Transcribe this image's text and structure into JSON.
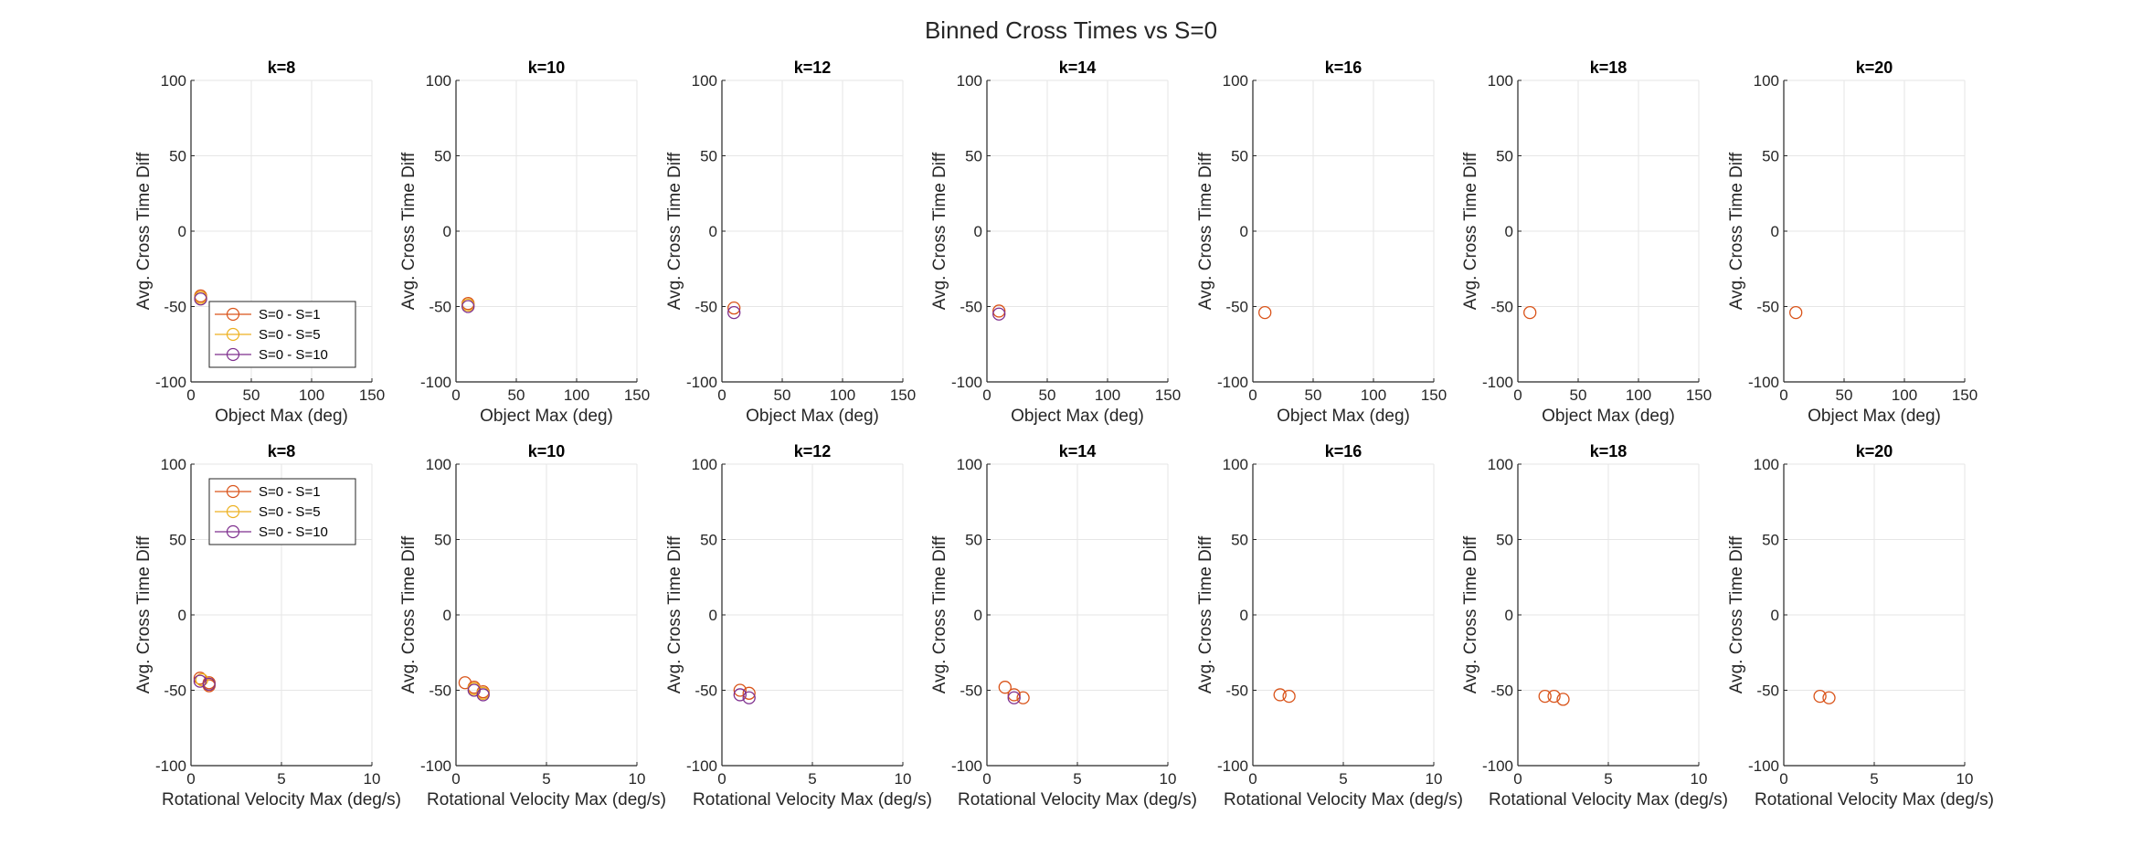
{
  "figure": {
    "title": "Binned Cross Times vs S=0"
  },
  "legend_entries": [
    "S=0 - S=1",
    "S=0 - S=5",
    "S=0 - S=10"
  ],
  "colors": {
    "S1": "#D95319",
    "S5": "#EDB120",
    "S10": "#7E2F8E",
    "grid": "#e6e6e6",
    "axis": "#262626"
  },
  "chart_data": [
    {
      "type": "scatter",
      "title": "k=8",
      "xlabel": "Object Max (deg)",
      "ylabel": "Avg. Cross Time Diff",
      "xlim": [
        0,
        150
      ],
      "ylim": [
        -100,
        100
      ],
      "xticks": [
        0,
        50,
        100,
        150
      ],
      "yticks": [
        -100,
        -50,
        0,
        50,
        100
      ],
      "grid": true,
      "legend": "bottom-left",
      "series": [
        {
          "name": "S=0 - S=1",
          "points": [
            [
              8,
              -43
            ]
          ]
        },
        {
          "name": "S=0 - S=5",
          "points": [
            [
              8,
              -44
            ]
          ]
        },
        {
          "name": "S=0 - S=10",
          "points": [
            [
              8,
              -45
            ]
          ]
        }
      ]
    },
    {
      "type": "scatter",
      "title": "k=10",
      "xlabel": "Object Max (deg)",
      "ylabel": "Avg. Cross Time Diff",
      "xlim": [
        0,
        150
      ],
      "ylim": [
        -100,
        100
      ],
      "xticks": [
        0,
        50,
        100,
        150
      ],
      "yticks": [
        -100,
        -50,
        0,
        50,
        100
      ],
      "grid": true,
      "legend": null,
      "series": [
        {
          "name": "S=0 - S=1",
          "points": [
            [
              10,
              -48
            ]
          ]
        },
        {
          "name": "S=0 - S=5",
          "points": [
            [
              10,
              -49
            ]
          ]
        },
        {
          "name": "S=0 - S=10",
          "points": [
            [
              10,
              -50
            ]
          ]
        }
      ]
    },
    {
      "type": "scatter",
      "title": "k=12",
      "xlabel": "Object Max (deg)",
      "ylabel": "Avg. Cross Time Diff",
      "xlim": [
        0,
        150
      ],
      "ylim": [
        -100,
        100
      ],
      "xticks": [
        0,
        50,
        100,
        150
      ],
      "yticks": [
        -100,
        -50,
        0,
        50,
        100
      ],
      "grid": true,
      "legend": null,
      "series": [
        {
          "name": "S=0 - S=1",
          "points": [
            [
              10,
              -51
            ]
          ]
        },
        {
          "name": "S=0 - S=10",
          "points": [
            [
              10,
              -54
            ]
          ]
        }
      ]
    },
    {
      "type": "scatter",
      "title": "k=14",
      "xlabel": "Object Max (deg)",
      "ylabel": "Avg. Cross Time Diff",
      "xlim": [
        0,
        150
      ],
      "ylim": [
        -100,
        100
      ],
      "xticks": [
        0,
        50,
        100,
        150
      ],
      "yticks": [
        -100,
        -50,
        0,
        50,
        100
      ],
      "grid": true,
      "legend": null,
      "series": [
        {
          "name": "S=0 - S=1",
          "points": [
            [
              10,
              -53
            ]
          ]
        },
        {
          "name": "S=0 - S=10",
          "points": [
            [
              10,
              -55
            ]
          ]
        }
      ]
    },
    {
      "type": "scatter",
      "title": "k=16",
      "xlabel": "Object Max (deg)",
      "ylabel": "Avg. Cross Time Diff",
      "xlim": [
        0,
        150
      ],
      "ylim": [
        -100,
        100
      ],
      "xticks": [
        0,
        50,
        100,
        150
      ],
      "yticks": [
        -100,
        -50,
        0,
        50,
        100
      ],
      "grid": true,
      "legend": null,
      "series": [
        {
          "name": "S=0 - S=1",
          "points": [
            [
              10,
              -54
            ]
          ]
        }
      ]
    },
    {
      "type": "scatter",
      "title": "k=18",
      "xlabel": "Object Max (deg)",
      "ylabel": "Avg. Cross Time Diff",
      "xlim": [
        0,
        150
      ],
      "ylim": [
        -100,
        100
      ],
      "xticks": [
        0,
        50,
        100,
        150
      ],
      "yticks": [
        -100,
        -50,
        0,
        50,
        100
      ],
      "grid": true,
      "legend": null,
      "series": [
        {
          "name": "S=0 - S=1",
          "points": [
            [
              10,
              -54
            ]
          ]
        }
      ]
    },
    {
      "type": "scatter",
      "title": "k=20",
      "xlabel": "Object Max (deg)",
      "ylabel": "Avg. Cross Time Diff",
      "xlim": [
        0,
        150
      ],
      "ylim": [
        -100,
        100
      ],
      "xticks": [
        0,
        50,
        100,
        150
      ],
      "yticks": [
        -100,
        -50,
        0,
        50,
        100
      ],
      "grid": true,
      "legend": null,
      "series": [
        {
          "name": "S=0 - S=1",
          "points": [
            [
              10,
              -54
            ]
          ]
        }
      ]
    },
    {
      "type": "scatter",
      "title": "k=8",
      "xlabel": "Rotational Velocity Max (deg/s)",
      "ylabel": "Avg. Cross Time Diff",
      "xlim": [
        0,
        10
      ],
      "ylim": [
        -100,
        100
      ],
      "xticks": [
        0,
        5,
        10
      ],
      "yticks": [
        -100,
        -50,
        0,
        50,
        100
      ],
      "grid": true,
      "legend": "top-left",
      "series": [
        {
          "name": "S=0 - S=1",
          "points": [
            [
              0.5,
              -42
            ],
            [
              1.0,
              -45
            ],
            [
              1.0,
              -47
            ]
          ]
        },
        {
          "name": "S=0 - S=5",
          "points": [
            [
              0.6,
              -43
            ],
            [
              1.0,
              -46
            ]
          ]
        },
        {
          "name": "S=0 - S=10",
          "points": [
            [
              0.5,
              -44
            ],
            [
              1.0,
              -46
            ]
          ]
        }
      ]
    },
    {
      "type": "scatter",
      "title": "k=10",
      "xlabel": "Rotational Velocity Max (deg/s)",
      "ylabel": "Avg. Cross Time Diff",
      "xlim": [
        0,
        10
      ],
      "ylim": [
        -100,
        100
      ],
      "xticks": [
        0,
        5,
        10
      ],
      "yticks": [
        -100,
        -50,
        0,
        50,
        100
      ],
      "grid": true,
      "legend": null,
      "series": [
        {
          "name": "S=0 - S=1",
          "points": [
            [
              0.5,
              -45
            ],
            [
              1.0,
              -48
            ],
            [
              1.5,
              -51
            ]
          ]
        },
        {
          "name": "S=0 - S=5",
          "points": [
            [
              1.0,
              -49
            ],
            [
              1.5,
              -52
            ]
          ]
        },
        {
          "name": "S=0 - S=10",
          "points": [
            [
              1.0,
              -50
            ],
            [
              1.5,
              -53
            ]
          ]
        }
      ]
    },
    {
      "type": "scatter",
      "title": "k=12",
      "xlabel": "Rotational Velocity Max (deg/s)",
      "ylabel": "Avg. Cross Time Diff",
      "xlim": [
        0,
        10
      ],
      "ylim": [
        -100,
        100
      ],
      "xticks": [
        0,
        5,
        10
      ],
      "yticks": [
        -100,
        -50,
        0,
        50,
        100
      ],
      "grid": true,
      "legend": null,
      "series": [
        {
          "name": "S=0 - S=1",
          "points": [
            [
              1.0,
              -50
            ],
            [
              1.5,
              -52
            ]
          ]
        },
        {
          "name": "S=0 - S=10",
          "points": [
            [
              1.0,
              -53
            ],
            [
              1.5,
              -55
            ]
          ]
        }
      ]
    },
    {
      "type": "scatter",
      "title": "k=14",
      "xlabel": "Rotational Velocity Max (deg/s)",
      "ylabel": "Avg. Cross Time Diff",
      "xlim": [
        0,
        10
      ],
      "ylim": [
        -100,
        100
      ],
      "xticks": [
        0,
        5,
        10
      ],
      "yticks": [
        -100,
        -50,
        0,
        50,
        100
      ],
      "grid": true,
      "legend": null,
      "series": [
        {
          "name": "S=0 - S=1",
          "points": [
            [
              1.0,
              -48
            ],
            [
              1.5,
              -53
            ],
            [
              2.0,
              -55
            ]
          ]
        },
        {
          "name": "S=0 - S=10",
          "points": [
            [
              1.5,
              -55
            ]
          ]
        }
      ]
    },
    {
      "type": "scatter",
      "title": "k=16",
      "xlabel": "Rotational Velocity Max (deg/s)",
      "ylabel": "Avg. Cross Time Diff",
      "xlim": [
        0,
        10
      ],
      "ylim": [
        -100,
        100
      ],
      "xticks": [
        0,
        5,
        10
      ],
      "yticks": [
        -100,
        -50,
        0,
        50,
        100
      ],
      "grid": true,
      "legend": null,
      "series": [
        {
          "name": "S=0 - S=1",
          "points": [
            [
              1.5,
              -53
            ],
            [
              2.0,
              -54
            ]
          ]
        }
      ]
    },
    {
      "type": "scatter",
      "title": "k=18",
      "xlabel": "Rotational Velocity Max (deg/s)",
      "ylabel": "Avg. Cross Time Diff",
      "xlim": [
        0,
        10
      ],
      "ylim": [
        -100,
        100
      ],
      "xticks": [
        0,
        5,
        10
      ],
      "yticks": [
        -100,
        -50,
        0,
        50,
        100
      ],
      "grid": true,
      "legend": null,
      "series": [
        {
          "name": "S=0 - S=1",
          "points": [
            [
              1.5,
              -54
            ],
            [
              2.0,
              -54
            ],
            [
              2.5,
              -56
            ]
          ]
        }
      ]
    },
    {
      "type": "scatter",
      "title": "k=20",
      "xlabel": "Rotational Velocity Max (deg/s)",
      "ylabel": "Avg. Cross Time Diff",
      "xlim": [
        0,
        10
      ],
      "ylim": [
        -100,
        100
      ],
      "xticks": [
        0,
        5,
        10
      ],
      "yticks": [
        -100,
        -50,
        0,
        50,
        100
      ],
      "grid": true,
      "legend": null,
      "series": [
        {
          "name": "S=0 - S=1",
          "points": [
            [
              2.0,
              -54
            ],
            [
              2.5,
              -55
            ]
          ]
        }
      ]
    }
  ]
}
